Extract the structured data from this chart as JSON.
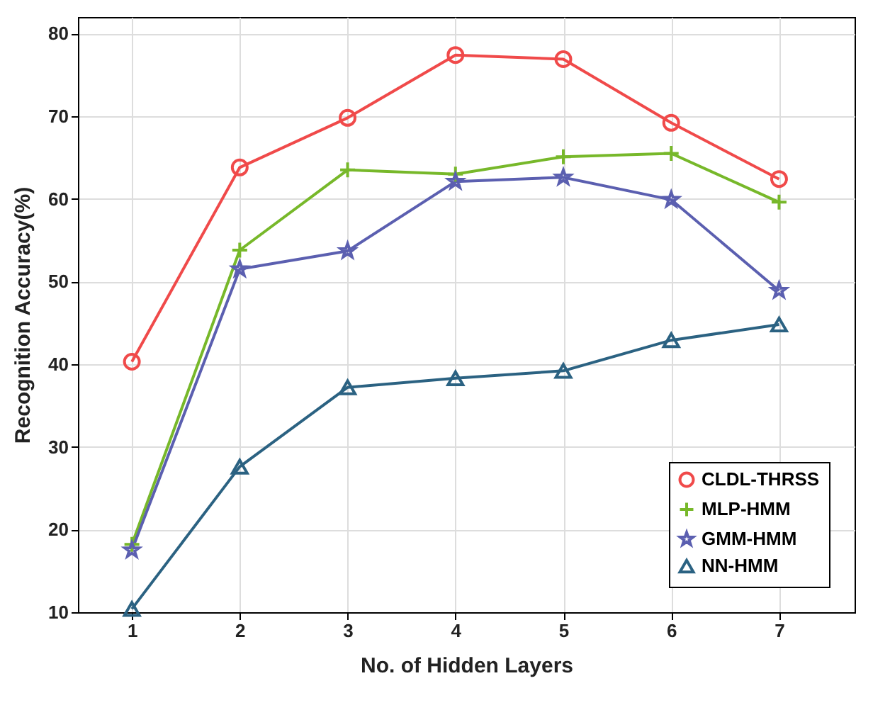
{
  "chart_data": {
    "type": "line",
    "xlabel": "No. of Hidden Layers",
    "ylabel": "Recognition Accuracy(%)",
    "x": [
      1,
      2,
      3,
      4,
      5,
      6,
      7
    ],
    "xlim": [
      0.5,
      7.7
    ],
    "xticks": [
      1,
      2,
      3,
      4,
      5,
      6,
      7
    ],
    "ylim": [
      10,
      82
    ],
    "yticks": [
      10,
      20,
      30,
      40,
      50,
      60,
      70,
      80
    ],
    "grid": true,
    "legend": "bottom right",
    "line_style": "solid",
    "series": [
      {
        "name": "CLDL-THRSS",
        "color": "#f04a4a",
        "marker": "circle",
        "values": [
          40.3,
          63.8,
          69.8,
          77.4,
          76.9,
          69.2,
          62.4
        ]
      },
      {
        "name": "MLP-HMM",
        "color": "#77b82a",
        "marker": "cross",
        "values": [
          18.2,
          53.8,
          63.5,
          63.0,
          65.1,
          65.5,
          59.6
        ]
      },
      {
        "name": "GMM-HMM",
        "color": "#5b5fb0",
        "marker": "star",
        "values": [
          17.5,
          51.5,
          53.7,
          62.1,
          62.6,
          59.9,
          48.9
        ]
      },
      {
        "name": "NN-HMM",
        "color": "#2b6282",
        "marker": "triangle",
        "values": [
          10.4,
          27.6,
          37.2,
          38.3,
          39.2,
          42.9,
          44.8
        ]
      }
    ]
  }
}
